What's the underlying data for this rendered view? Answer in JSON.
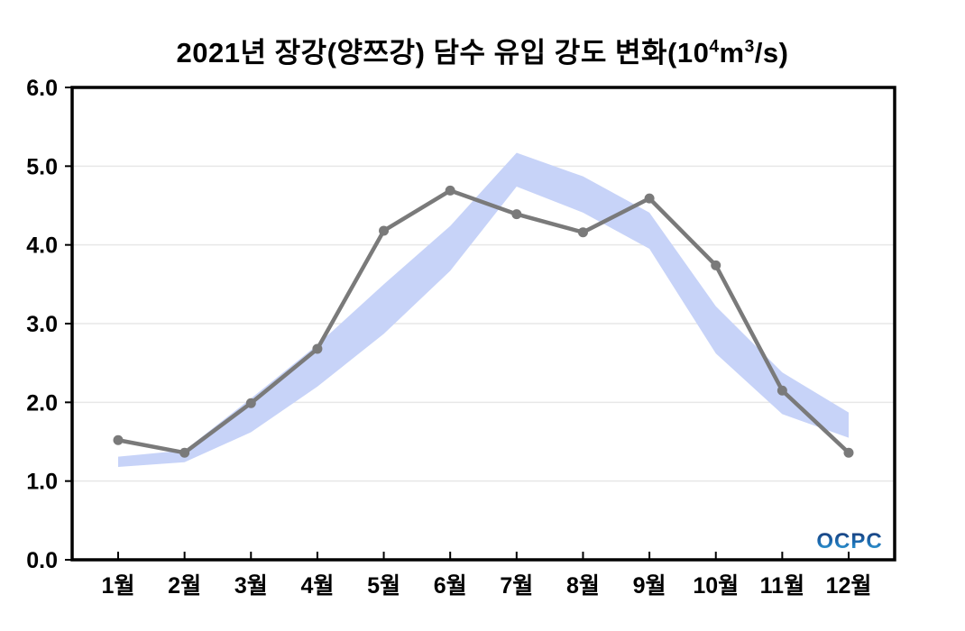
{
  "title": {
    "main": "2021년 장강(양쯔강) 담수 유입 강도 변화",
    "unit_open": "(10",
    "unit_exp1": "4",
    "unit_m": "m",
    "unit_exp2": "3",
    "unit_close": "/s)"
  },
  "logo": {
    "text": "OCPC",
    "color_top": "#17316e",
    "color_mid": "#1d6db2",
    "color_bottom": "#3fb2e4"
  },
  "chart_data": {
    "type": "line",
    "title": "2021년 장강(양쯔강) 담수 유입 강도 변화(10⁴m³/s)",
    "categories": [
      "1월",
      "2월",
      "3월",
      "4월",
      "5월",
      "6월",
      "7월",
      "8월",
      "9월",
      "10월",
      "11월",
      "12월"
    ],
    "line": {
      "color": "#7a7a7a",
      "values": [
        1.52,
        1.36,
        1.99,
        2.68,
        4.18,
        4.69,
        4.39,
        4.16,
        4.59,
        3.74,
        2.15,
        1.36
      ]
    },
    "band": {
      "color": "#c7d3f8",
      "lower": [
        1.18,
        1.24,
        1.62,
        2.2,
        2.87,
        3.67,
        4.74,
        4.41,
        3.95,
        2.62,
        1.85,
        1.55
      ],
      "upper": [
        1.31,
        1.39,
        2.05,
        2.73,
        3.5,
        4.24,
        5.17,
        4.87,
        4.41,
        3.22,
        2.38,
        1.87
      ]
    },
    "ylim": [
      0,
      6
    ],
    "yticks": [
      0,
      1,
      2,
      3,
      4,
      5,
      6
    ],
    "ytick_labels": [
      "0.0",
      "1.0",
      "2.0",
      "3.0",
      "4.0",
      "5.0",
      "6.0"
    ],
    "xlabel": "",
    "ylabel": "",
    "grid": true,
    "legend": "none",
    "gridline_color": "#e7e7e7",
    "axis_color": "#000000"
  }
}
